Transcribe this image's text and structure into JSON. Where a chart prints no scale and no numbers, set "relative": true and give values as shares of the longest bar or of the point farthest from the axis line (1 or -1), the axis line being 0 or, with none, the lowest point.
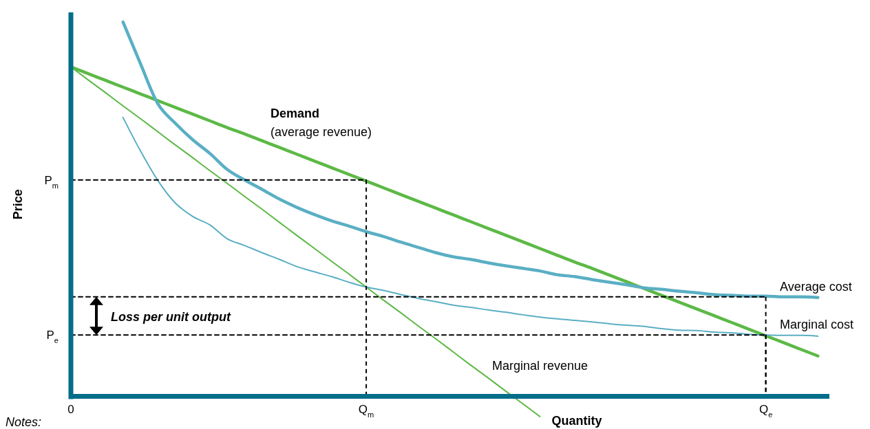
{
  "chart_data": {
    "type": "line",
    "xlabel": "Quantity",
    "ylabel": "Price",
    "relative": true,
    "categories": [
      "0",
      null,
      null,
      null,
      null,
      null,
      null,
      null,
      null,
      null,
      null,
      null,
      null,
      null,
      null,
      null,
      null,
      "Q$_{m}$",
      null,
      null,
      null,
      null,
      null,
      null,
      null,
      null,
      null,
      null,
      null,
      null,
      null,
      null,
      null,
      null,
      null,
      null,
      null,
      null,
      null,
      null,
      "Q$_{e}$",
      null,
      null,
      null
    ],
    "series": [
      {
        "color": "#5cb946",
        "values": [
          0.88,
          0.862,
          0.844,
          0.826,
          0.808,
          0.79,
          0.772,
          0.754,
          0.736,
          0.718,
          0.701,
          0.683,
          0.665,
          0.647,
          0.629,
          0.611,
          0.593,
          0.575,
          0.557,
          0.539,
          0.521,
          0.503,
          0.485,
          0.467,
          0.449,
          0.431,
          0.413,
          0.395,
          0.377,
          0.359,
          0.342,
          0.324,
          0.306,
          0.288,
          0.27,
          0.252,
          0.234,
          0.216,
          0.198,
          0.18,
          0.162,
          0.144,
          0.126,
          0.108
        ]
      },
      {
        "color": "#5cb946",
        "values": [
          0.88,
          0.845,
          0.811,
          0.776,
          0.742,
          0.707,
          0.672,
          0.638,
          0.603,
          0.569,
          0.534,
          0.5,
          0.465,
          0.43,
          0.396,
          0.361,
          0.327,
          0.292,
          0.257,
          0.223,
          0.188,
          0.154,
          0.119,
          0.084,
          0.05,
          0.015,
          -0.019,
          -0.054,
          null,
          null,
          null,
          null,
          null,
          null,
          null,
          null,
          null,
          null,
          null,
          null,
          null,
          null,
          null,
          null
        ]
      },
      {
        "color": "#5aafc4",
        "values": [
          null,
          null,
          null,
          1,
          0.889,
          0.782,
          0.73,
          0.686,
          0.649,
          0.606,
          0.578,
          0.553,
          0.527,
          0.505,
          0.486,
          0.469,
          0.455,
          0.44,
          0.427,
          0.412,
          0.398,
          0.384,
          0.373,
          0.366,
          0.357,
          0.349,
          0.342,
          0.335,
          0.325,
          0.32,
          0.312,
          0.305,
          0.298,
          0.29,
          0.286,
          0.281,
          0.277,
          0.272,
          0.27,
          0.268,
          0.268,
          0.266,
          0.266,
          0.264
        ]
      },
      {
        "color": "#5aafc4",
        "values": [
          null,
          null,
          null,
          0.745,
          0.656,
          0.577,
          0.517,
          0.481,
          0.458,
          0.421,
          0.403,
          0.384,
          0.366,
          0.347,
          0.333,
          0.32,
          0.305,
          0.292,
          0.283,
          0.272,
          0.262,
          0.253,
          0.244,
          0.238,
          0.231,
          0.225,
          0.218,
          0.212,
          0.207,
          0.203,
          0.199,
          0.194,
          0.19,
          0.187,
          0.181,
          0.177,
          0.176,
          0.172,
          0.17,
          0.166,
          0.164,
          0.163,
          0.163,
          0.161
        ]
      },
      {
        "color": "#000000",
        "line_style": "dashed",
        "values": [
          0.578,
          0.578,
          0.578,
          0.578,
          0.578,
          0.578,
          0.578,
          0.578,
          0.578,
          0.578,
          0.578,
          0.578,
          0.578,
          0.578,
          0.578,
          0.578,
          0.578,
          0.578,
          null,
          null,
          null,
          null,
          null,
          null,
          null,
          null,
          null,
          null,
          null,
          null,
          null,
          null,
          null,
          null,
          null,
          null,
          null,
          null,
          null,
          null,
          null,
          null,
          null,
          null
        ]
      },
      {
        "color": "#000000",
        "line_style": "dashed",
        "values": [
          0.164,
          0.164,
          0.164,
          0.164,
          0.164,
          0.164,
          0.164,
          0.164,
          0.164,
          0.164,
          0.164,
          0.164,
          0.164,
          0.164,
          0.164,
          0.164,
          0.164,
          0.164,
          0.164,
          0.164,
          0.164,
          0.164,
          0.164,
          0.164,
          0.164,
          0.164,
          0.164,
          0.164,
          0.164,
          0.164,
          0.164,
          0.164,
          0.164,
          0.164,
          0.164,
          0.164,
          0.164,
          0.164,
          0.164,
          0.164,
          0.164,
          null,
          null,
          null
        ]
      },
      {
        "color": "#000000",
        "line_style": "dashed",
        "values": [
          0.266,
          0.266,
          0.266,
          0.266,
          0.266,
          0.266,
          0.266,
          0.266,
          0.266,
          0.266,
          0.266,
          0.266,
          0.266,
          0.266,
          0.266,
          0.266,
          0.266,
          0.266,
          0.266,
          0.266,
          0.266,
          0.266,
          0.266,
          0.266,
          0.266,
          0.266,
          0.266,
          0.266,
          0.266,
          0.266,
          0.266,
          0.266,
          0.266,
          0.266,
          0.266,
          0.266,
          0.266,
          0.266,
          0.266,
          0.266,
          0.266,
          null,
          null,
          null
        ]
      }
    ],
    "annotations": [
      "Demand",
      "(average revenue)",
      "Loss per unit output",
      "Average cost",
      "Marginal cost",
      "Marginal revenue",
      "Notes:",
      "P$_{m}$",
      "P$_{e}$"
    ]
  }
}
